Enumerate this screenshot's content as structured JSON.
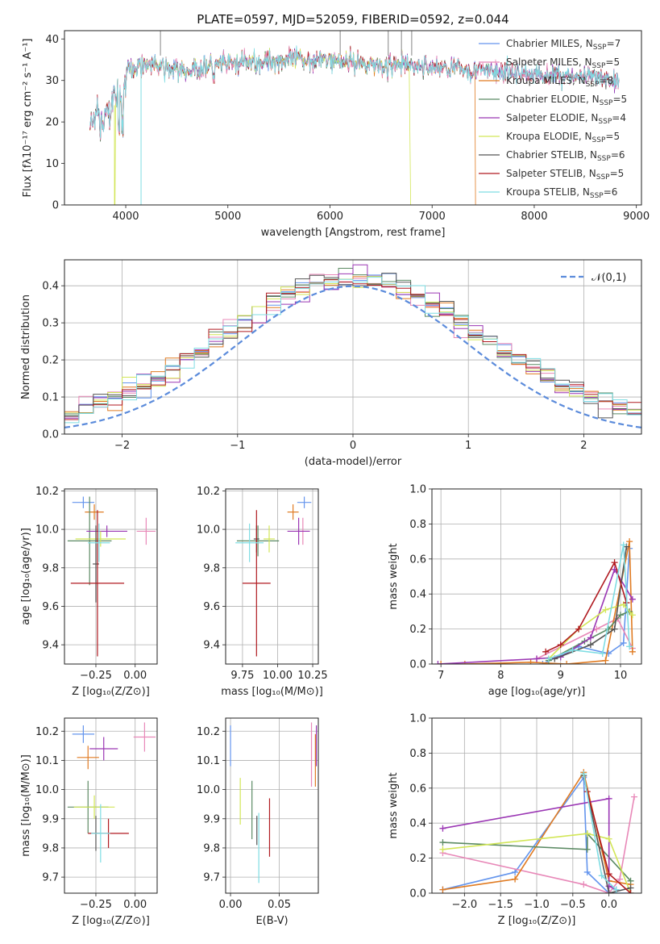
{
  "figure": {
    "title": "PLATE=0597, MJD=52059, FIBERID=0592, z=0.044"
  },
  "colors": [
    "#6495ED",
    "#E888B8",
    "#E07B22",
    "#5B8A63",
    "#9B37B4",
    "#D2E657",
    "#555555",
    "#B01A20",
    "#7FDDE3"
  ],
  "chart_data": [
    {
      "id": "spectrum",
      "type": "line",
      "xlabel": "wavelength [Angstrom, rest frame]",
      "ylabel": "Flux [fλ10⁻¹⁷ erg cm⁻² s⁻¹ A⁻¹]",
      "xlim": [
        3400,
        9050
      ],
      "ylim": [
        0,
        42
      ],
      "xticks": [
        4000,
        5000,
        6000,
        7000,
        8000,
        9000
      ],
      "yticks": [
        0,
        10,
        20,
        30,
        40
      ],
      "legend_placement": "right",
      "continuum_x": [
        3650,
        3800,
        3950,
        4050,
        4200,
        4400,
        4600,
        4800,
        5000,
        5300,
        5600,
        6000,
        6400,
        6800,
        7200,
        7600,
        8000,
        8400,
        8800
      ],
      "continuum_y": [
        22,
        25,
        30,
        33,
        34,
        33,
        32,
        33.5,
        34,
        34.5,
        35,
        35,
        34,
        33.5,
        33,
        32,
        31.5,
        31,
        30
      ],
      "series": [
        {
          "name": "Chabrier MILES, N",
          "sub": "SSP",
          "suffix": "=7"
        },
        {
          "name": "Salpeter MILES, N",
          "sub": "SSP",
          "suffix": "=5"
        },
        {
          "name": "Kroupa MILES, N",
          "sub": "SSP",
          "suffix": "=8"
        },
        {
          "name": "Chabrier ELODIE, N",
          "sub": "SSP",
          "suffix": "=5"
        },
        {
          "name": "Salpeter ELODIE, N",
          "sub": "SSP",
          "suffix": "=4"
        },
        {
          "name": "Kroupa ELODIE, N",
          "sub": "SSP",
          "suffix": "=5"
        },
        {
          "name": "Chabrier STELIB, N",
          "sub": "SSP",
          "suffix": "=6"
        },
        {
          "name": "Salpeter STELIB, N",
          "sub": "SSP",
          "suffix": "=5"
        },
        {
          "name": "Kroupa STELIB, N",
          "sub": "SSP",
          "suffix": "=6"
        }
      ]
    },
    {
      "id": "residuals",
      "type": "histogram",
      "xlabel": "(data-model)/error",
      "ylabel": "Normed distribution",
      "xlim": [
        -2.5,
        2.5
      ],
      "ylim": [
        0,
        0.47
      ],
      "xticks": [
        -2,
        -1,
        0,
        1,
        2
      ],
      "yticks": [
        0.0,
        0.1,
        0.2,
        0.3,
        0.4
      ],
      "grid": true,
      "reference_curve": "𝒩(0,1)",
      "legend_placement": "top-right",
      "bins": 40
    },
    {
      "id": "age_vs_Z",
      "type": "scatter",
      "xlabel": "Z [log₁₀(Z/Z⊙)]",
      "ylabel": "age  [log₁₀(age/yr)]",
      "xlim": [
        -0.45,
        0.14
      ],
      "ylim": [
        9.3,
        10.21
      ],
      "xticks": [
        -0.25,
        0.0
      ],
      "xticklabels": [
        "−0.25",
        "0.00"
      ],
      "yticks": [
        9.4,
        9.6,
        9.8,
        10.0,
        10.2
      ],
      "grid": true,
      "points": [
        {
          "x": -0.33,
          "y": 10.14,
          "xerr": 0.07,
          "yerr": 0.03
        },
        {
          "x": 0.07,
          "y": 9.99,
          "xerr": 0.06,
          "yerr": 0.07
        },
        {
          "x": -0.26,
          "y": 10.09,
          "xerr": 0.06,
          "yerr": 0.04
        },
        {
          "x": -0.29,
          "y": 9.94,
          "xerr": 0.14,
          "yerr": 0.23
        },
        {
          "x": -0.18,
          "y": 9.99,
          "xerr": 0.13,
          "yerr": 0.03
        },
        {
          "x": -0.22,
          "y": 9.95,
          "xerr": 0.16,
          "yerr": 0.04
        },
        {
          "x": -0.25,
          "y": 9.82,
          "xerr": 0.02,
          "yerr": 0.2
        },
        {
          "x": -0.24,
          "y": 9.72,
          "xerr": 0.17,
          "yerr": 0.38
        },
        {
          "x": -0.23,
          "y": 9.93,
          "xerr": 0.07,
          "yerr": 0.1
        }
      ]
    },
    {
      "id": "age_vs_mass",
      "type": "scatter",
      "xlabel": "mass [log₁₀(M/M⊙)]",
      "ylabel": "",
      "xlim": [
        9.63,
        10.29
      ],
      "ylim": [
        9.3,
        10.21
      ],
      "xticks": [
        9.75,
        10.0,
        10.25
      ],
      "xticklabels": [
        "9.75",
        "10.00",
        "10.25"
      ],
      "yticks": [
        9.4,
        9.6,
        9.8,
        10.0,
        10.2
      ],
      "grid": true,
      "points": [
        {
          "x": 10.19,
          "y": 10.14,
          "xerr": 0.05,
          "yerr": 0.03
        },
        {
          "x": 10.18,
          "y": 9.99,
          "xerr": 0.05,
          "yerr": 0.07
        },
        {
          "x": 10.11,
          "y": 10.09,
          "xerr": 0.04,
          "yerr": 0.04
        },
        {
          "x": 9.86,
          "y": 9.94,
          "xerr": 0.15,
          "yerr": 0.08
        },
        {
          "x": 10.15,
          "y": 9.99,
          "xerr": 0.08,
          "yerr": 0.07
        },
        {
          "x": 9.94,
          "y": 9.95,
          "xerr": 0.04,
          "yerr": 0.07
        },
        {
          "x": 9.85,
          "y": 9.95,
          "xerr": 0.02,
          "yerr": 0.07
        },
        {
          "x": 9.85,
          "y": 9.72,
          "xerr": 0.1,
          "yerr": 0.38
        },
        {
          "x": 9.8,
          "y": 9.93,
          "xerr": 0.1,
          "yerr": 0.1
        }
      ]
    },
    {
      "id": "weight_vs_age",
      "type": "line",
      "xlabel": "age  [log₁₀(age/yr)]",
      "ylabel": "mass weight",
      "xlim": [
        6.85,
        10.35
      ],
      "ylim": [
        0,
        1.0
      ],
      "xticks": [
        7,
        8,
        9,
        10
      ],
      "yticks": [
        0.0,
        0.2,
        0.4,
        0.6,
        0.8,
        1.0
      ],
      "grid": true,
      "series": [
        {
          "x": [
            8.7,
            9.3,
            9.8,
            10.05,
            10.15
          ],
          "y": [
            0.0,
            0.1,
            0.06,
            0.12,
            0.66
          ]
        },
        {
          "x": [
            8.6,
            9.6,
            9.95,
            10.2
          ],
          "y": [
            0.03,
            0.2,
            0.26,
            0.09
          ]
        },
        {
          "x": [
            7.0,
            7.4,
            8.5,
            9.1,
            9.75,
            10.15,
            10.2
          ],
          "y": [
            0.0,
            0.0,
            0.01,
            0.0,
            0.02,
            0.7,
            0.07
          ]
        },
        {
          "x": [
            8.8,
            9.4,
            9.8,
            10.0,
            10.15
          ],
          "y": [
            0.02,
            0.13,
            0.2,
            0.28,
            0.3
          ]
        },
        {
          "x": [
            6.95,
            8.6,
            9.0,
            9.5,
            9.9,
            10.2
          ],
          "y": [
            0.0,
            0.03,
            0.04,
            0.15,
            0.54,
            0.37
          ]
        },
        {
          "x": [
            8.8,
            9.3,
            9.75,
            10.05,
            10.2
          ],
          "y": [
            0.03,
            0.2,
            0.31,
            0.34,
            0.28
          ]
        },
        {
          "x": [
            8.9,
            9.5,
            9.9,
            10.1
          ],
          "y": [
            0.03,
            0.11,
            0.2,
            0.67
          ]
        },
        {
          "x": [
            8.75,
            9.0,
            9.3,
            9.9,
            10.1
          ],
          "y": [
            0.07,
            0.11,
            0.2,
            0.58,
            0.35
          ]
        },
        {
          "x": [
            8.8,
            9.2,
            9.7,
            10.05,
            10.15
          ],
          "y": [
            0.03,
            0.08,
            0.06,
            0.68,
            0.1
          ]
        }
      ]
    },
    {
      "id": "mass_vs_Z",
      "type": "scatter",
      "xlabel": "Z [log₁₀(Z/Z⊙)]",
      "ylabel": "mass [log₁₀(M/M⊙)]",
      "xlim": [
        -0.45,
        0.14
      ],
      "ylim": [
        9.645,
        10.245
      ],
      "xticks": [
        -0.25,
        0.0
      ],
      "xticklabels": [
        "−0.25",
        "0.00"
      ],
      "yticks": [
        9.7,
        9.8,
        9.9,
        10.0,
        10.1,
        10.2
      ],
      "grid": true,
      "points": [
        {
          "x": -0.33,
          "y": 10.19,
          "xerr": 0.07,
          "yerr": 0.03
        },
        {
          "x": 0.06,
          "y": 10.18,
          "xerr": 0.07,
          "yerr": 0.05
        },
        {
          "x": -0.3,
          "y": 10.11,
          "xerr": 0.07,
          "yerr": 0.04
        },
        {
          "x": -0.3,
          "y": 9.94,
          "xerr": 0.13,
          "yerr": 0.09
        },
        {
          "x": -0.2,
          "y": 10.14,
          "xerr": 0.09,
          "yerr": 0.04
        },
        {
          "x": -0.26,
          "y": 9.94,
          "xerr": 0.13,
          "yerr": 0.04
        },
        {
          "x": -0.25,
          "y": 9.85,
          "xerr": 0.03,
          "yerr": 0.06
        },
        {
          "x": -0.17,
          "y": 9.85,
          "xerr": 0.13,
          "yerr": 0.05
        },
        {
          "x": -0.22,
          "y": 9.85,
          "xerr": 0.06,
          "yerr": 0.1
        }
      ]
    },
    {
      "id": "mass_vs_EBV",
      "type": "scatter",
      "xlabel": "E(B-V)",
      "ylabel": "",
      "xlim": [
        -0.005,
        0.09
      ],
      "ylim": [
        9.645,
        10.245
      ],
      "xticks": [
        0.0,
        0.05
      ],
      "xticklabels": [
        "0.00",
        "0.05"
      ],
      "yticks": [
        9.7,
        9.8,
        9.9,
        10.0,
        10.1,
        10.2
      ],
      "grid": true,
      "points": [
        {
          "x": 0.0,
          "y": 10.15,
          "xerr": 0,
          "yerr": 0.07
        },
        {
          "x": 0.083,
          "y": 10.12,
          "xerr": 0,
          "yerr": 0.11
        },
        {
          "x": 0.087,
          "y": 10.1,
          "xerr": 0,
          "yerr": 0.09
        },
        {
          "x": 0.022,
          "y": 9.93,
          "xerr": 0,
          "yerr": 0.1
        },
        {
          "x": 0.088,
          "y": 10.15,
          "xerr": 0,
          "yerr": 0.07
        },
        {
          "x": 0.01,
          "y": 9.96,
          "xerr": 0,
          "yerr": 0.08
        },
        {
          "x": 0.027,
          "y": 9.86,
          "xerr": 0,
          "yerr": 0.05
        },
        {
          "x": 0.04,
          "y": 9.87,
          "xerr": 0,
          "yerr": 0.1
        },
        {
          "x": 0.029,
          "y": 9.8,
          "xerr": 0,
          "yerr": 0.12
        }
      ]
    },
    {
      "id": "weight_vs_Z",
      "type": "line",
      "xlabel": "Z [log₁₀(Z/Z⊙)]",
      "ylabel": "mass weight",
      "xlim": [
        -2.45,
        0.45
      ],
      "ylim": [
        0,
        1.0
      ],
      "xticks": [
        -2.0,
        -1.5,
        -1.0,
        -0.5,
        0.0
      ],
      "xticklabels": [
        "−2.0",
        "−1.5",
        "−1.0",
        "−0.5",
        "0.0"
      ],
      "yticks": [
        0.0,
        0.2,
        0.4,
        0.6,
        0.8,
        1.0
      ],
      "grid": true,
      "series": [
        {
          "x": [
            -2.3,
            -1.3,
            -0.35,
            -0.3,
            0.0,
            0.3
          ],
          "y": [
            0.02,
            0.12,
            0.66,
            0.12,
            0.0,
            0.0
          ]
        },
        {
          "x": [
            -2.3,
            -0.35,
            0.0,
            0.15,
            0.35
          ],
          "y": [
            0.23,
            0.05,
            0.0,
            0.08,
            0.55
          ]
        },
        {
          "x": [
            -2.3,
            -1.3,
            -0.35,
            0.0,
            0.3
          ],
          "y": [
            0.02,
            0.08,
            0.69,
            0.07,
            0.05
          ]
        },
        {
          "x": [
            -2.3,
            -0.3,
            -0.3,
            0.3
          ],
          "y": [
            0.29,
            0.25,
            0.34,
            0.07
          ]
        },
        {
          "x": [
            -2.3,
            0.0,
            0.0,
            0.1
          ],
          "y": [
            0.37,
            0.54,
            0.04,
            0.02
          ]
        },
        {
          "x": [
            -2.3,
            -0.3,
            0.0,
            0.3
          ],
          "y": [
            0.25,
            0.34,
            0.31,
            0.0
          ]
        },
        {
          "x": [
            -0.35,
            0.0,
            0.3
          ],
          "y": [
            0.67,
            0.0,
            0.03
          ]
        },
        {
          "x": [
            -0.3,
            0.0,
            0.3
          ],
          "y": [
            0.58,
            0.11,
            0.0
          ]
        },
        {
          "x": [
            -0.35,
            -0.1,
            0.1
          ],
          "y": [
            0.68,
            0.1,
            0.02
          ]
        }
      ]
    }
  ]
}
